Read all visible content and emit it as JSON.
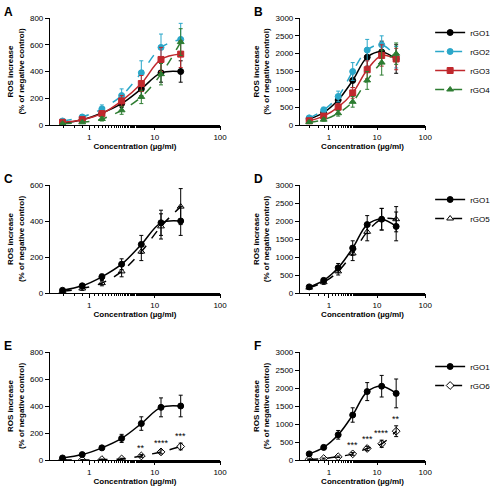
{
  "chart_data": [
    {
      "type": "line",
      "label": "A",
      "xlabel": "Concentration (µg/ml)",
      "ylabel": "ROS increase\n(% of negative control)",
      "log": "x",
      "grid": false,
      "xlim": [
        0.25,
        100
      ],
      "xticks": [
        1,
        10,
        100
      ],
      "ylim": [
        0,
        800
      ],
      "yticks": [
        0,
        200,
        400,
        600,
        800
      ],
      "x": [
        0.39,
        0.78,
        1.56,
        3.125,
        6.25,
        12.5,
        25
      ],
      "series": [
        {
          "name": "rGO1",
          "color": "#000000",
          "marker": "circle",
          "line_style": "solid",
          "values": [
            15,
            40,
            90,
            160,
            270,
            390,
            400
          ],
          "error": [
            5,
            10,
            15,
            30,
            50,
            70,
            80
          ]
        },
        {
          "name": "rGO2",
          "color": "#2aa7c9",
          "marker": "circle",
          "line_style": "dashed",
          "values": [
            30,
            60,
            120,
            220,
            390,
            580,
            640
          ],
          "error": [
            10,
            15,
            30,
            50,
            90,
            100,
            120
          ]
        },
        {
          "name": "rGO3",
          "color": "#c0282d",
          "marker": "square",
          "line_style": "solid",
          "values": [
            20,
            40,
            85,
            180,
            310,
            490,
            530
          ],
          "error": [
            5,
            10,
            20,
            40,
            60,
            90,
            100
          ]
        },
        {
          "name": "rGO4",
          "color": "#2e7d32",
          "marker": "triangle-up",
          "line_style": "dashed",
          "values": [
            10,
            20,
            45,
            110,
            210,
            380,
            620
          ],
          "error": [
            5,
            5,
            15,
            30,
            50,
            80,
            100
          ]
        }
      ]
    },
    {
      "type": "line",
      "label": "B",
      "xlabel": "Concentration (µg/ml)",
      "ylabel": "ROS increase\n(% of negative control)",
      "log": "x",
      "grid": false,
      "legend": "right",
      "xlim": [
        0.25,
        100
      ],
      "xticks": [
        1,
        10,
        100
      ],
      "ylim": [
        0,
        3000
      ],
      "yticks": [
        0,
        500,
        1000,
        1500,
        2000,
        2500,
        3000
      ],
      "x": [
        0.39,
        0.78,
        1.56,
        3.125,
        6.25,
        12.5,
        25
      ],
      "series": [
        {
          "name": "rGO1",
          "color": "#000000",
          "marker": "circle",
          "line_style": "solid",
          "values": [
            170,
            350,
            700,
            1250,
            1900,
            2050,
            1850
          ],
          "error": [
            40,
            60,
            120,
            200,
            250,
            300,
            400
          ]
        },
        {
          "name": "rGO2",
          "color": "#2aa7c9",
          "marker": "circle",
          "line_style": "dashed",
          "values": [
            200,
            420,
            800,
            1500,
            2100,
            2250,
            1900
          ],
          "error": [
            50,
            80,
            150,
            250,
            300,
            250,
            300
          ]
        },
        {
          "name": "rGO3",
          "color": "#c0282d",
          "marker": "square",
          "line_style": "solid",
          "values": [
            120,
            250,
            500,
            900,
            1550,
            1950,
            1850
          ],
          "error": [
            30,
            50,
            100,
            150,
            250,
            300,
            300
          ]
        },
        {
          "name": "rGO4",
          "color": "#2e7d32",
          "marker": "triangle-up",
          "line_style": "dashed",
          "values": [
            80,
            150,
            330,
            650,
            1250,
            1750,
            2000
          ],
          "error": [
            30,
            40,
            80,
            150,
            250,
            350,
            300
          ]
        }
      ]
    },
    {
      "type": "line",
      "label": "C",
      "xlabel": "Concentration (µg/ml)",
      "ylabel": "ROS increase\n(% of negative control)",
      "log": "x",
      "grid": false,
      "xlim": [
        0.25,
        100
      ],
      "xticks": [
        1,
        10,
        100
      ],
      "ylim": [
        0,
        600
      ],
      "yticks": [
        0,
        200,
        400,
        600
      ],
      "x": [
        0.39,
        0.78,
        1.56,
        3.125,
        6.25,
        12.5,
        25
      ],
      "series": [
        {
          "name": "rGO1",
          "color": "#000000",
          "marker": "circle",
          "line_style": "solid",
          "values": [
            15,
            40,
            90,
            160,
            270,
            390,
            400
          ],
          "error": [
            5,
            10,
            15,
            30,
            50,
            70,
            80
          ]
        },
        {
          "name": "rGO5",
          "color": "#000000",
          "marker": "triangle-up-open",
          "line_style": "dashed",
          "values": [
            10,
            25,
            55,
            120,
            230,
            370,
            480
          ],
          "error": [
            5,
            10,
            15,
            30,
            50,
            70,
            100
          ]
        }
      ]
    },
    {
      "type": "line",
      "label": "D",
      "xlabel": "Concentration (µg/ml)",
      "ylabel": "ROS increase\n(% of negative control)",
      "log": "x",
      "grid": false,
      "legend": "right",
      "xlim": [
        0.25,
        100
      ],
      "xticks": [
        1,
        10,
        100
      ],
      "ylim": [
        0,
        3000
      ],
      "yticks": [
        0,
        500,
        1000,
        1500,
        2000,
        2500,
        3000
      ],
      "x": [
        0.39,
        0.78,
        1.56,
        3.125,
        6.25,
        12.5,
        25
      ],
      "series": [
        {
          "name": "rGO1",
          "color": "#000000",
          "marker": "circle",
          "line_style": "solid",
          "values": [
            170,
            350,
            700,
            1250,
            1900,
            2050,
            1850
          ],
          "error": [
            40,
            60,
            120,
            200,
            250,
            300,
            400
          ]
        },
        {
          "name": "rGO5",
          "color": "#000000",
          "marker": "triangle-up-open",
          "line_style": "dashed",
          "values": [
            150,
            300,
            600,
            1100,
            1700,
            2050,
            2050
          ],
          "error": [
            40,
            60,
            100,
            200,
            250,
            300,
            350
          ]
        }
      ]
    },
    {
      "type": "line",
      "label": "E",
      "xlabel": "Concentration (µg/ml)",
      "ylabel": "ROS increase\n(% of negative control)",
      "log": "x",
      "grid": false,
      "xlim": [
        0.25,
        100
      ],
      "xticks": [
        1,
        10,
        100
      ],
      "ylim": [
        0,
        800
      ],
      "yticks": [
        0,
        200,
        400,
        600,
        800
      ],
      "x": [
        0.39,
        0.78,
        1.56,
        3.125,
        6.25,
        12.5,
        25
      ],
      "series": [
        {
          "name": "rGO1",
          "color": "#000000",
          "marker": "circle",
          "line_style": "solid",
          "values": [
            15,
            40,
            90,
            160,
            270,
            390,
            400
          ],
          "error": [
            5,
            10,
            15,
            30,
            50,
            70,
            80
          ]
        },
        {
          "name": "rGO6",
          "color": "#000000",
          "marker": "diamond-open",
          "line_style": "dashed",
          "values": [
            0,
            0,
            3,
            8,
            30,
            60,
            100
          ],
          "error": [
            2,
            2,
            3,
            5,
            10,
            15,
            25
          ],
          "significance": [
            null,
            null,
            null,
            null,
            "**",
            "****",
            "***"
          ]
        }
      ]
    },
    {
      "type": "line",
      "label": "F",
      "xlabel": "Concentration (µg/ml)",
      "ylabel": "ROS increase\n(% of negative control)",
      "log": "x",
      "grid": false,
      "legend": "right",
      "xlim": [
        0.25,
        100
      ],
      "xticks": [
        1,
        10,
        100
      ],
      "ylim": [
        0,
        3000
      ],
      "yticks": [
        0,
        500,
        1000,
        1500,
        2000,
        2500,
        3000
      ],
      "x": [
        0.39,
        0.78,
        1.56,
        3.125,
        6.25,
        12.5,
        25
      ],
      "series": [
        {
          "name": "rGO1",
          "color": "#000000",
          "marker": "circle",
          "line_style": "solid",
          "values": [
            170,
            350,
            700,
            1250,
            1900,
            2050,
            1850
          ],
          "error": [
            40,
            60,
            120,
            200,
            250,
            300,
            400
          ]
        },
        {
          "name": "rGO6",
          "color": "#000000",
          "marker": "diamond-open",
          "line_style": "dashed",
          "values": [
            20,
            40,
            90,
            170,
            320,
            450,
            800
          ],
          "error": [
            10,
            15,
            20,
            40,
            60,
            100,
            150
          ],
          "significance": [
            null,
            null,
            null,
            "***",
            "***",
            "****",
            "**"
          ]
        }
      ]
    }
  ]
}
